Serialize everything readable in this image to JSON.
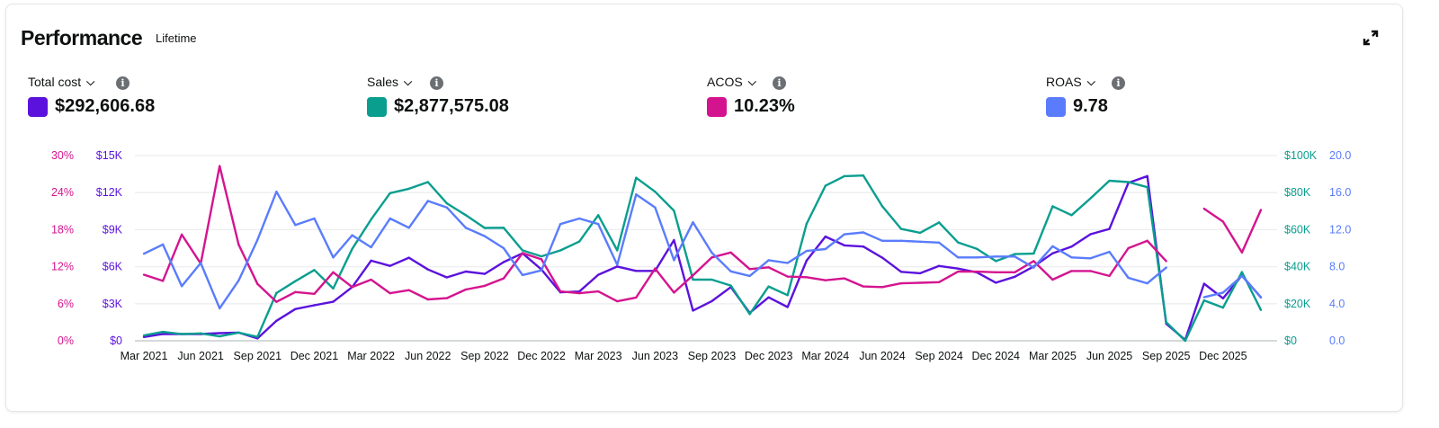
{
  "header": {
    "title": "Performance",
    "subtitle": "Lifetime",
    "expand_icon": "expand-arrows-icon"
  },
  "metrics": [
    {
      "label": "Total cost",
      "value": "$292,606.68",
      "color": "#5b12dd"
    },
    {
      "label": "Sales",
      "value": "$2,877,575.08",
      "color": "#0a9e8f"
    },
    {
      "label": "ACOS",
      "value": "10.23%",
      "color": "#d4148f"
    },
    {
      "label": "ROAS",
      "value": "9.78",
      "color": "#5a7cfc"
    }
  ],
  "chart_data": {
    "type": "line",
    "x": [
      "Mar 2021",
      "Apr 2021",
      "May 2021",
      "Jun 2021",
      "Jul 2021",
      "Aug 2021",
      "Sep 2021",
      "Oct 2021",
      "Nov 2021",
      "Dec 2021",
      "Jan 2022",
      "Feb 2022",
      "Mar 2022",
      "Apr 2022",
      "May 2022",
      "Jun 2022",
      "Jul 2022",
      "Aug 2022",
      "Sep 2022",
      "Oct 2022",
      "Nov 2022",
      "Dec 2022",
      "Jan 2023",
      "Feb 2023",
      "Mar 2023",
      "Apr 2023",
      "May 2023",
      "Jun 2023",
      "Jul 2023",
      "Aug 2023",
      "Sep 2023",
      "Oct 2023",
      "Nov 2023",
      "Dec 2023",
      "Jan 2024",
      "Feb 2024",
      "Mar 2024",
      "Apr 2024",
      "May 2024",
      "Jun 2024",
      "Jul 2024",
      "Aug 2024",
      "Sep 2024",
      "Oct 2024",
      "Nov 2024",
      "Dec 2024",
      "Jan 2025",
      "Feb 2025",
      "Mar 2025",
      "Apr 2025",
      "May 2025",
      "Jun 2025",
      "Jul 2025",
      "Aug 2025",
      "Sep 2025",
      "Oct 2025",
      "Nov 2025",
      "Dec 2025",
      "Jan 2026",
      "Feb 2026"
    ],
    "x_tick_labels": [
      "Mar 2021",
      "Jun 2021",
      "Sep 2021",
      "Dec 2021",
      "Mar 2022",
      "Jun 2022",
      "Sep 2022",
      "Dec 2022",
      "Mar 2023",
      "Jun 2023",
      "Sep 2023",
      "Dec 2023",
      "Mar 2024",
      "Jun 2024",
      "Sep 2024",
      "Dec 2024",
      "Mar 2025",
      "Jun 2025",
      "Sep 2025",
      "Dec 2025"
    ],
    "axes": {
      "acos": {
        "ticks": [
          "0%",
          "6%",
          "12%",
          "18%",
          "24%",
          "30%"
        ],
        "range": [
          0,
          30
        ],
        "side": "left-outer"
      },
      "cost": {
        "ticks": [
          "$0",
          "$3K",
          "$6K",
          "$9K",
          "$12K",
          "$15K"
        ],
        "range": [
          0,
          15000
        ],
        "side": "left-inner"
      },
      "sales": {
        "ticks": [
          "$0",
          "$20K",
          "$40K",
          "$60K",
          "$80K",
          "$100K"
        ],
        "range": [
          0,
          100000
        ],
        "side": "right-inner"
      },
      "roas": {
        "ticks": [
          "0.0",
          "4.0",
          "8.0",
          "12.0",
          "16.0",
          "20.0"
        ],
        "range": [
          0,
          20
        ],
        "side": "right-outer"
      }
    },
    "grid": true,
    "series": [
      {
        "name": "Total cost",
        "axis": "cost",
        "color": "#5b12dd",
        "values": [
          309,
          547,
          547,
          547,
          618,
          666,
          190,
          1616,
          2567,
          2876,
          3162,
          4350,
          6490,
          6062,
          6728,
          5777,
          5135,
          5610,
          5420,
          6371,
          7084,
          5776,
          3922,
          3993,
          5348,
          6014,
          5657,
          5657,
          8153,
          2448,
          3209,
          4350,
          2258,
          3518,
          2734,
          6489,
          8438,
          7725,
          7630,
          6727,
          5586,
          5467,
          6061,
          5847,
          5538,
          4707,
          5182,
          6014,
          7083,
          7630,
          8629,
          9057,
          12788,
          13335,
          1379,
          71,
          4621,
          3436,
          5284,
          3507
        ]
      },
      {
        "name": "Sales",
        "axis": "sales",
        "color": "#0a9e8f",
        "values": [
          2900,
          4800,
          3600,
          4000,
          2400,
          4400,
          2100,
          25800,
          32200,
          38200,
          28200,
          49600,
          65500,
          79700,
          82100,
          85700,
          74200,
          67800,
          60900,
          61000,
          48800,
          45600,
          48800,
          53600,
          67800,
          48800,
          88000,
          80500,
          70200,
          33000,
          33000,
          29800,
          14400,
          29300,
          24600,
          63100,
          83700,
          88900,
          89200,
          72600,
          60400,
          58300,
          63900,
          53100,
          49600,
          43000,
          46800,
          47100,
          72600,
          67800,
          76900,
          86400,
          85700,
          82900,
          10000,
          0,
          21800,
          17900,
          37100,
          16600
        ]
      },
      {
        "name": "ACOS",
        "axis": "acos",
        "color": "#d4148f",
        "values": [
          10.7,
          9.7,
          17.2,
          12.5,
          28.3,
          15.6,
          9.2,
          6.3,
          7.9,
          7.6,
          11.1,
          8.7,
          9.9,
          7.7,
          8.2,
          6.7,
          6.9,
          8.3,
          8.9,
          10.1,
          14.2,
          13.2,
          8.0,
          7.7,
          8.0,
          6.4,
          7.0,
          11.7,
          7.8,
          10.6,
          13.5,
          14.3,
          11.6,
          11.9,
          10.4,
          10.3,
          9.8,
          10.1,
          8.8,
          8.7,
          9.3,
          9.4,
          9.5,
          11.2,
          11.2,
          11.1,
          11.1,
          12.9,
          9.9,
          11.3,
          11.3,
          10.5,
          15.0,
          16.2,
          12.9,
          null,
          21.4,
          19.3,
          14.3,
          21.2
        ]
      },
      {
        "name": "ROAS",
        "axis": "roas",
        "color": "#5a7cfc",
        "values": [
          9.4,
          10.4,
          5.9,
          8.4,
          3.5,
          6.5,
          10.9,
          16.1,
          12.5,
          13.2,
          9.0,
          11.4,
          10.1,
          13.2,
          12.2,
          15.1,
          14.4,
          12.2,
          11.3,
          10.0,
          7.1,
          7.6,
          12.6,
          13.2,
          12.6,
          8.2,
          15.8,
          14.4,
          8.7,
          12.8,
          9.5,
          7.5,
          7.0,
          8.7,
          8.4,
          9.7,
          9.9,
          11.5,
          11.7,
          10.8,
          10.8,
          10.7,
          10.6,
          9.0,
          9.0,
          9.1,
          9.1,
          7.9,
          10.2,
          9.0,
          8.9,
          9.6,
          6.8,
          6.2,
          7.9,
          null,
          4.7,
          5.2,
          7.0,
          4.7
        ]
      }
    ]
  }
}
